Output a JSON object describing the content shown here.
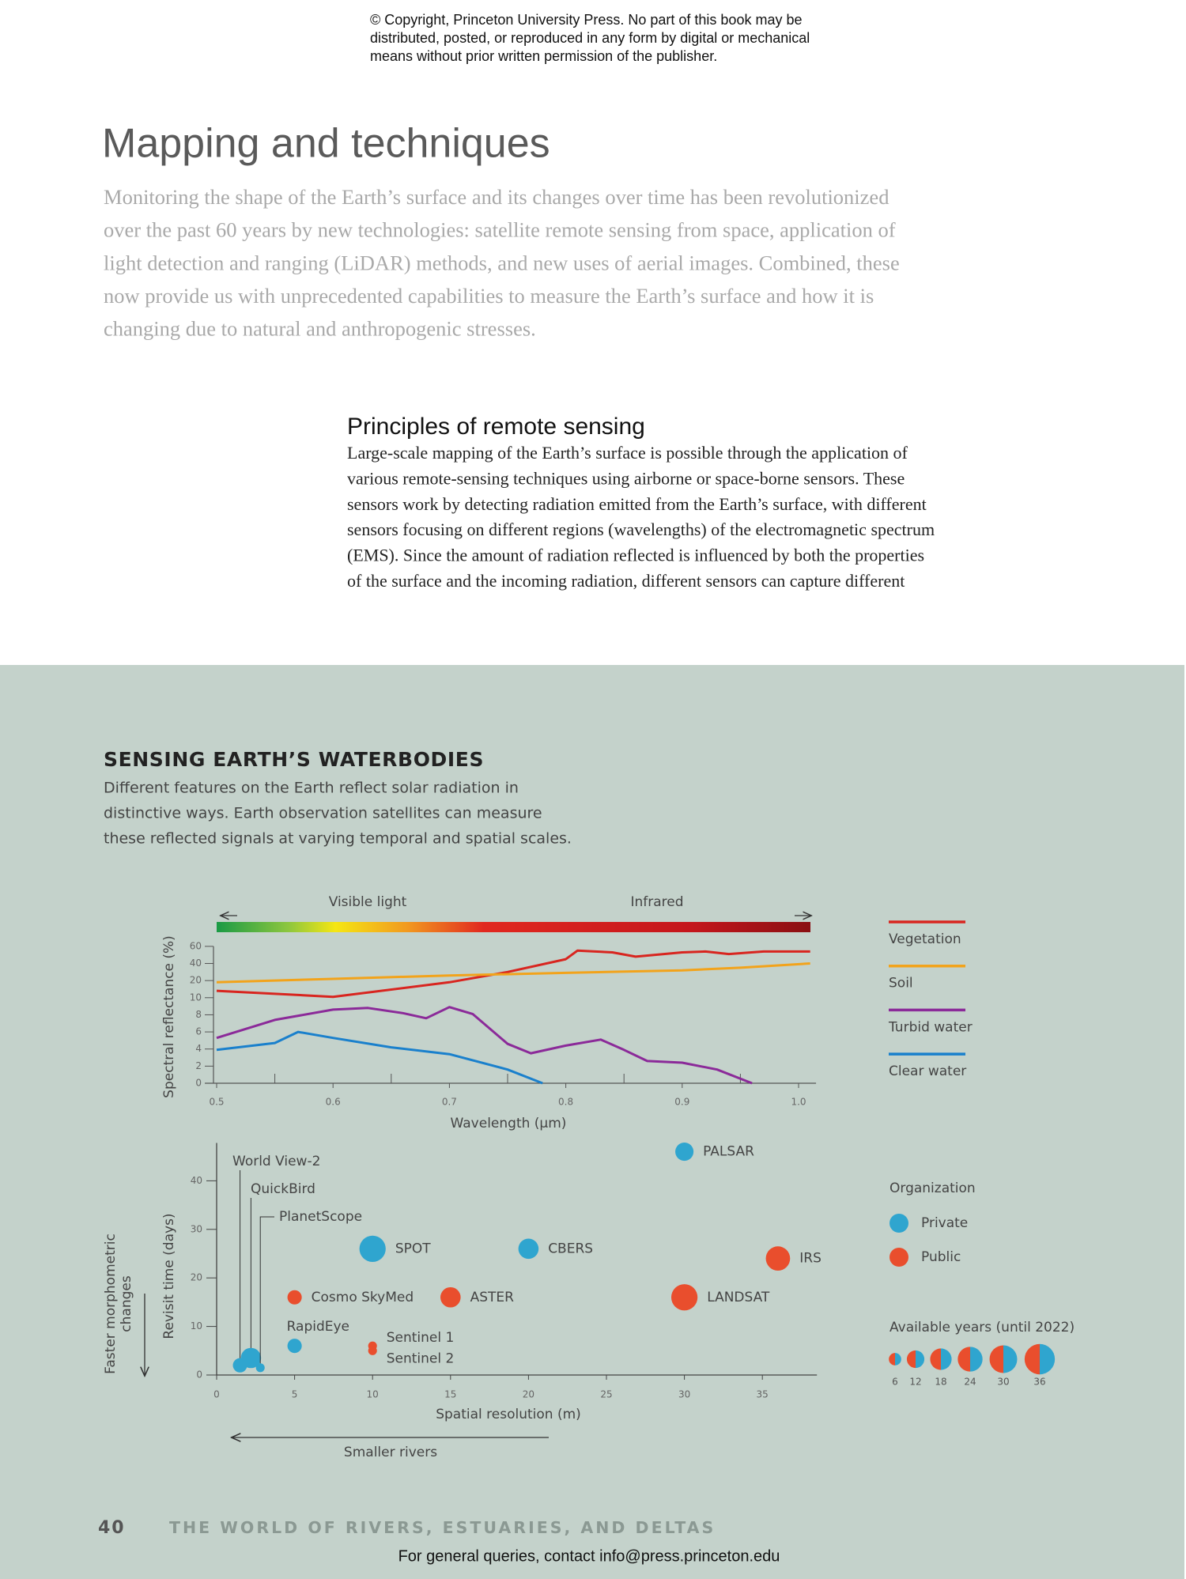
{
  "copyright": [
    "© Copyright, Princeton University Press. No part of this book may be",
    "distributed, posted, or reproduced in any form by digital or mechanical",
    "means without prior written permission of the publisher."
  ],
  "header": {
    "title": "Mapping and techniques",
    "intro": [
      "Monitoring the shape of the Earth’s surface and its changes over time has been revolutionized",
      "over the past 60 years by new technologies: satellite remote sensing from space, application of",
      "light detection and ranging (LiDAR) methods, and new uses of aerial images. Combined, these",
      "now provide us with unprecedented capabilities to measure the Earth’s surface and how it is",
      "changing due to natural and anthropogenic stresses."
    ]
  },
  "section": {
    "title": "Principles of remote sensing",
    "lines": [
      "Large-scale mapping of the Earth’s surface is possible through the application of",
      "various remote-sensing techniques using airborne or space-borne sensors. These",
      "sensors work by detecting radiation emitted from the Earth’s surface, with different",
      "sensors focusing on different regions (wavelengths) of the electromagnetic spectrum",
      "(EMS). Since the amount of radiation reflected is influenced by both the properties",
      "of the surface and the incoming radiation, different sensors can capture different"
    ]
  },
  "figure": {
    "title": "SENSING EARTH’S WATERBODIES",
    "description": [
      "Different features on the Earth reflect solar radiation in",
      "distinctive ways. Earth observation satellites can measure",
      "these reflected signals at varying temporal and spatial scales."
    ]
  },
  "chart_data": [
    {
      "type": "line",
      "band_labels": [
        "Visible light",
        "Infrared"
      ],
      "xlabel": "Wavelength (μm)",
      "ylabel": "Spectral reflectance (%)",
      "xlim": [
        0.49,
        1.015
      ],
      "ylim": [
        0,
        60
      ],
      "xticks": [
        0.5,
        0.6,
        0.7,
        0.8,
        0.9,
        {
          "value": 1,
          "label": "1.0"
        }
      ],
      "xminor_ticks": [
        0.55,
        0.65,
        0.75,
        0.85,
        0.95
      ],
      "yticks": [
        0,
        2,
        4,
        6,
        8,
        10,
        20,
        40,
        60
      ],
      "legend": "right",
      "series": [
        {
          "name": "Vegetation",
          "color": "#d8251f",
          "x": [
            0.5,
            0.6,
            0.7,
            0.75,
            0.8,
            0.81,
            0.84,
            0.86,
            0.9,
            0.92,
            0.94,
            0.97,
            1.01
          ],
          "values": [
            14,
            10.5,
            19,
            30,
            45,
            55,
            53,
            48,
            53,
            54,
            51,
            54,
            54
          ]
        },
        {
          "name": "Soil",
          "color": "#f2a31b",
          "x": [
            0.5,
            0.6,
            0.7,
            0.8,
            0.9,
            0.95,
            1.01
          ],
          "values": [
            19,
            22,
            26,
            29,
            32,
            35,
            40
          ]
        },
        {
          "name": "Turbid water",
          "color": "#8b2a99",
          "x": [
            0.5,
            0.55,
            0.6,
            0.63,
            0.66,
            0.68,
            0.7,
            0.72,
            0.75,
            0.77,
            0.8,
            0.83,
            0.85,
            0.87,
            0.9,
            0.93,
            0.96
          ],
          "values": [
            5.3,
            7.4,
            8.6,
            8.8,
            8.2,
            7.6,
            8.9,
            8.1,
            4.6,
            3.5,
            4.4,
            5.1,
            3.9,
            2.6,
            2.4,
            1.6,
            0
          ]
        },
        {
          "name": "Clear water",
          "color": "#1a80cc",
          "x": [
            0.5,
            0.55,
            0.57,
            0.6,
            0.65,
            0.7,
            0.75,
            0.78
          ],
          "values": [
            3.9,
            4.7,
            6,
            5.3,
            4.2,
            3.4,
            1.6,
            0
          ]
        }
      ]
    },
    {
      "type": "bubble",
      "xlabel": "Spatial resolution (m)",
      "ylabel": "Revisit time (days)",
      "side_label": [
        "Faster morphometric",
        "changes"
      ],
      "bottom_annotation": "Smaller rivers",
      "xlim": [
        0,
        38.5
      ],
      "ylim": [
        0,
        47.8
      ],
      "xticks": [
        0,
        5,
        10,
        15,
        20,
        25,
        30,
        35
      ],
      "yticks": [
        0,
        10,
        20,
        30,
        40
      ],
      "legend_title": "Organization",
      "size_legend_title": "Available years (until 2022)",
      "size_legend": [
        6,
        12,
        18,
        24,
        30,
        36
      ],
      "series": [
        {
          "name": "Private",
          "color": "#2fa5cf",
          "labels": [
            "World View-2",
            "QuickBird",
            "PlanetScope",
            "RapidEye",
            "SPOT",
            "CBERS",
            "PALSAR"
          ],
          "x": [
            1.5,
            2.2,
            2.8,
            5,
            10,
            20,
            30
          ],
          "values": [
            2,
            3.5,
            1.5,
            6,
            26,
            26,
            46
          ],
          "sizes": [
            8,
            16,
            3,
            8,
            27,
            16,
            13
          ]
        },
        {
          "name": "Public",
          "color": "#e94e2d",
          "labels": [
            "Cosmo SkyMed",
            "Sentinel 1",
            "Sentinel 2",
            "ASTER",
            "LANDSAT",
            "IRS"
          ],
          "x": [
            5,
            10,
            10,
            15,
            30,
            36
          ],
          "values": [
            16,
            6,
            5,
            16,
            16,
            24
          ],
          "sizes": [
            8,
            3,
            3,
            16,
            27,
            23
          ]
        }
      ]
    }
  ],
  "footer": {
    "page_number": "40",
    "book_title": "THE WORLD OF RIVERS, ESTUARIES, AND DELTAS",
    "contact": "For general queries, contact info@press.princeton.edu"
  }
}
